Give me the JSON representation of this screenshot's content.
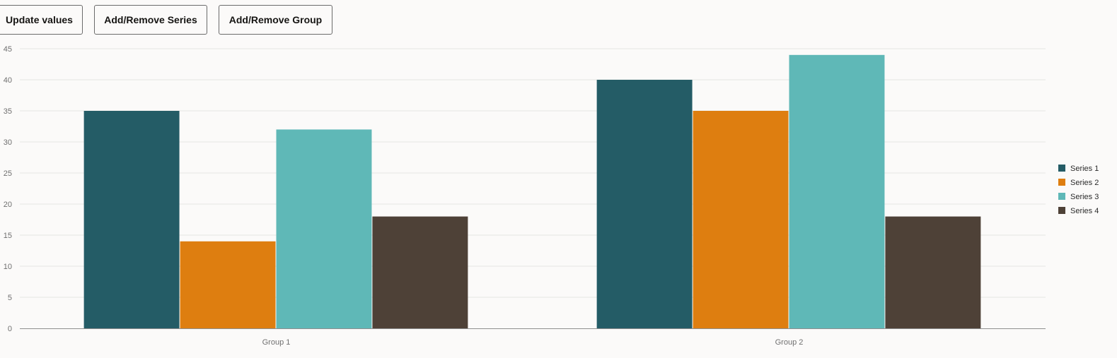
{
  "toolbar": {
    "update_label": "Update values",
    "series_label": "Add/Remove Series",
    "group_label": "Add/Remove Group"
  },
  "chart_data": {
    "type": "bar",
    "categories": [
      "Group 1",
      "Group 2"
    ],
    "series": [
      {
        "name": "Series 1",
        "values": [
          35,
          40
        ],
        "color": "#245c66"
      },
      {
        "name": "Series 2",
        "values": [
          14,
          35
        ],
        "color": "#de7e10"
      },
      {
        "name": "Series 3",
        "values": [
          32,
          44
        ],
        "color": "#5fb8b7"
      },
      {
        "name": "Series 4",
        "values": [
          18,
          18
        ],
        "color": "#4e4137"
      }
    ],
    "title": "",
    "xlabel": "",
    "ylabel": "",
    "ylim": [
      0,
      45
    ],
    "yticks": [
      0,
      5,
      10,
      15,
      20,
      25,
      30,
      35,
      40,
      45
    ],
    "grid": true,
    "legend": "right",
    "colors": {
      "grid": "#e6e5e3",
      "axis": "#8f8f8f"
    }
  }
}
